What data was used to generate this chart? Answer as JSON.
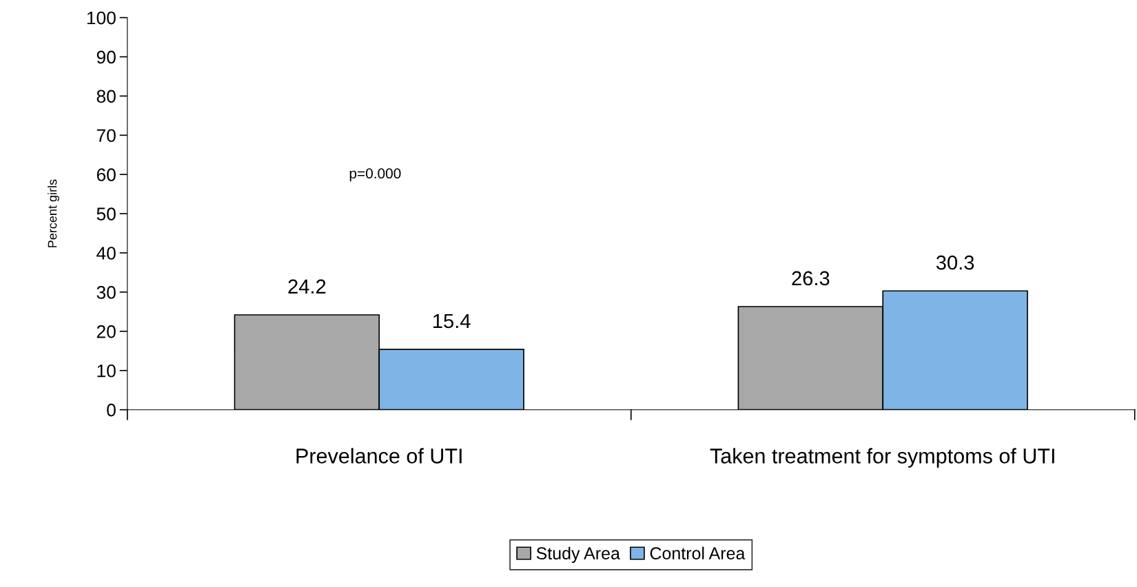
{
  "chart_data": {
    "type": "bar",
    "ylabel": "Percent girls",
    "categories": [
      "Prevelance of UTI",
      "Taken treatment for symptoms of UTI"
    ],
    "series": [
      {
        "name": "Study Area",
        "color": "#a8a8a8",
        "values": [
          24.2,
          26.3
        ]
      },
      {
        "name": "Control Area",
        "color": "#7fb4e6",
        "values": [
          15.4,
          30.3
        ]
      }
    ],
    "ylim": [
      0,
      100
    ],
    "yticks": [
      0,
      10,
      20,
      30,
      40,
      50,
      60,
      70,
      80,
      90,
      100
    ],
    "data_labels": true,
    "grid": false,
    "legend": "bottom",
    "annotations": [
      "p=0.000"
    ]
  }
}
